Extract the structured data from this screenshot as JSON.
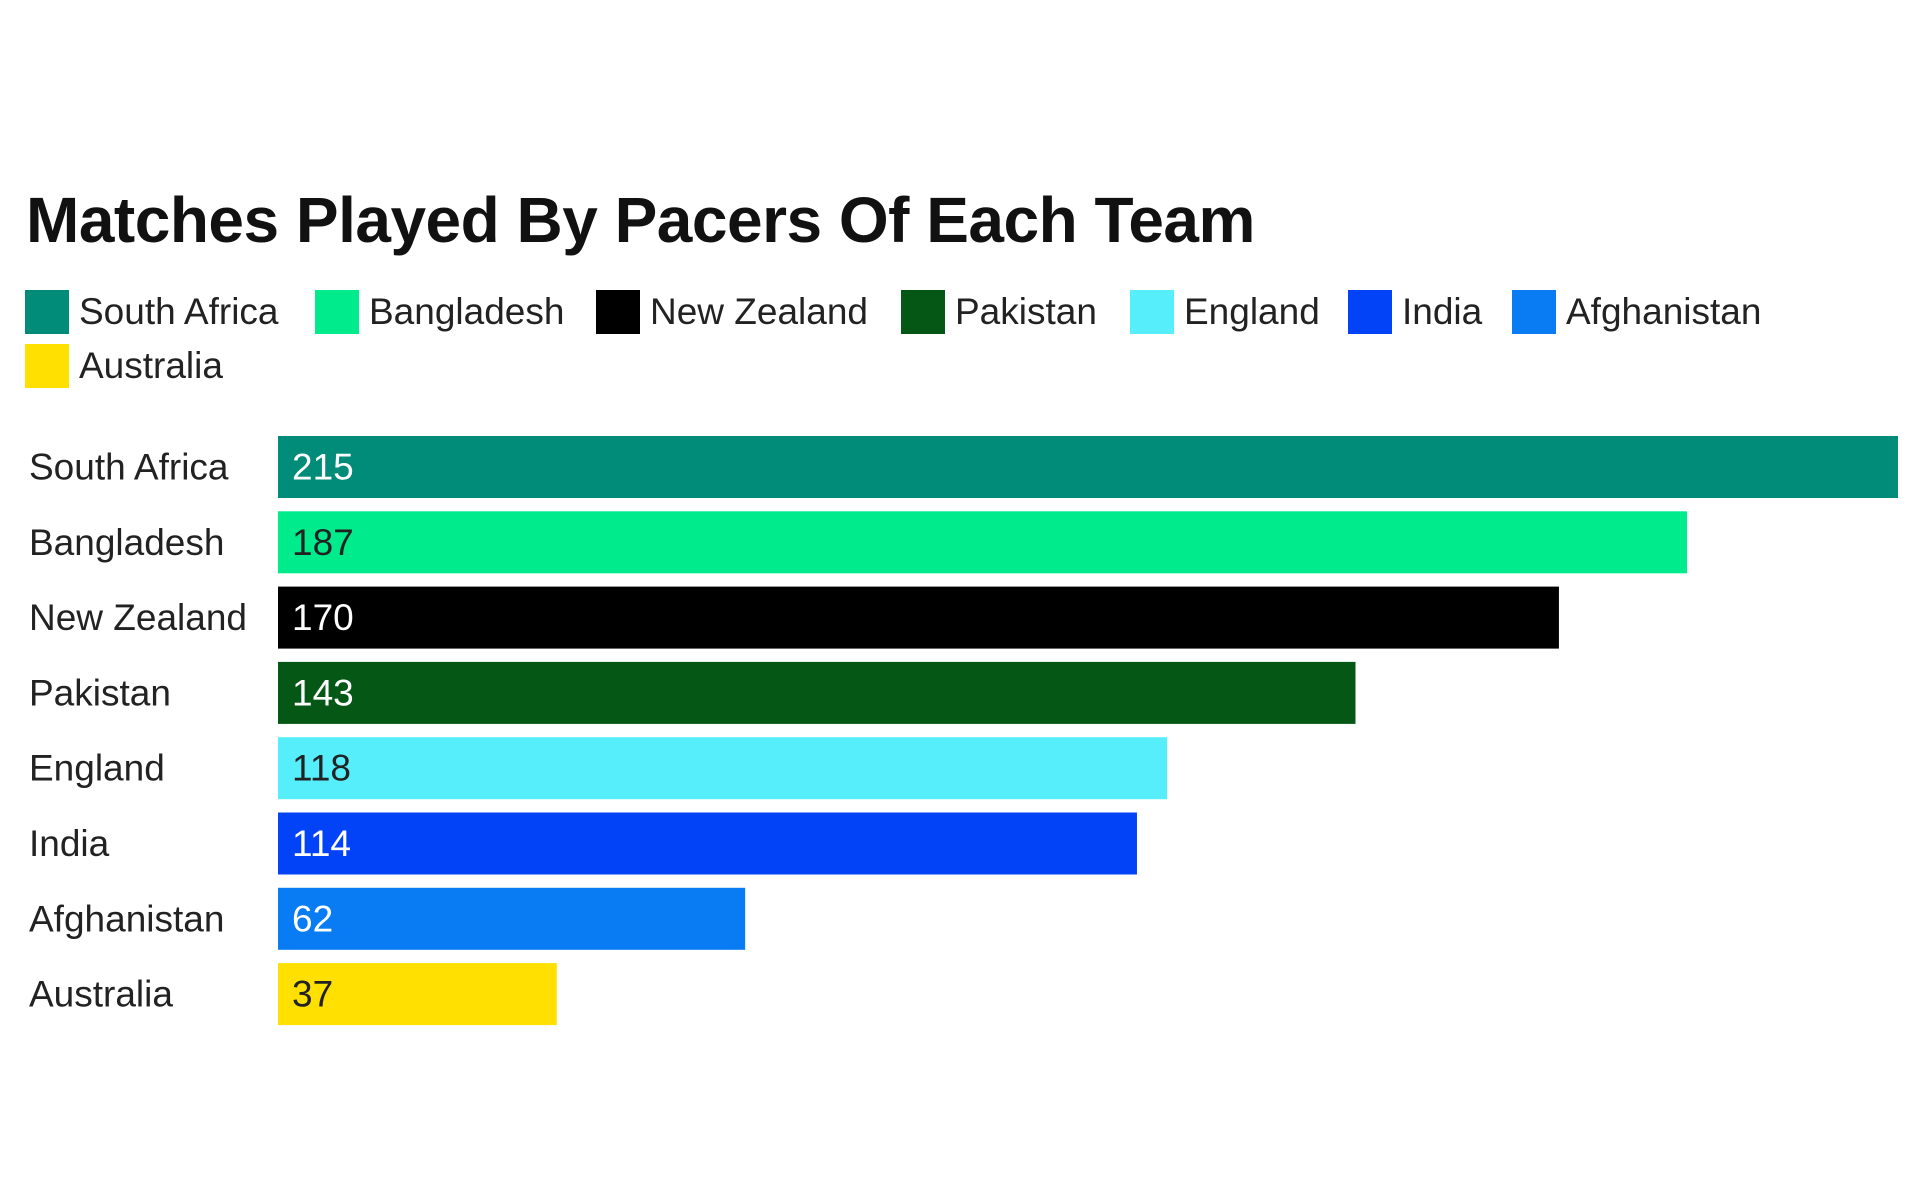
{
  "chart_data": {
    "type": "bar",
    "orientation": "horizontal",
    "title": "Matches Played By Pacers Of Each Team",
    "categories": [
      "South Africa",
      "Bangladesh",
      "New Zealand",
      "Pakistan",
      "England",
      "India",
      "Afghanistan",
      "Australia"
    ],
    "values": [
      215,
      187,
      170,
      143,
      118,
      114,
      62,
      37
    ],
    "colors": [
      "#008c78",
      "#00eb8c",
      "#000000",
      "#055716",
      "#55eefa",
      "#0343f8",
      "#0a7cf3",
      "#ffe000"
    ],
    "value_label_colors": [
      "#ffffff",
      "#222222",
      "#ffffff",
      "#ffffff",
      "#222222",
      "#ffffff",
      "#ffffff",
      "#222222"
    ],
    "legend": {
      "placement": "top-left",
      "entries": [
        {
          "label": "South Africa",
          "color": "#008c78"
        },
        {
          "label": "Bangladesh",
          "color": "#00eb8c"
        },
        {
          "label": "New Zealand",
          "color": "#000000"
        },
        {
          "label": "Pakistan",
          "color": "#055716"
        },
        {
          "label": "England",
          "color": "#55eefa"
        },
        {
          "label": "India",
          "color": "#0343f8"
        },
        {
          "label": "Afghanistan",
          "color": "#0a7cf3"
        },
        {
          "label": "Australia",
          "color": "#ffe000"
        }
      ]
    },
    "xlim": [
      0,
      215
    ],
    "grid": false,
    "axes_visible": false,
    "data_labels": "inside-start"
  }
}
